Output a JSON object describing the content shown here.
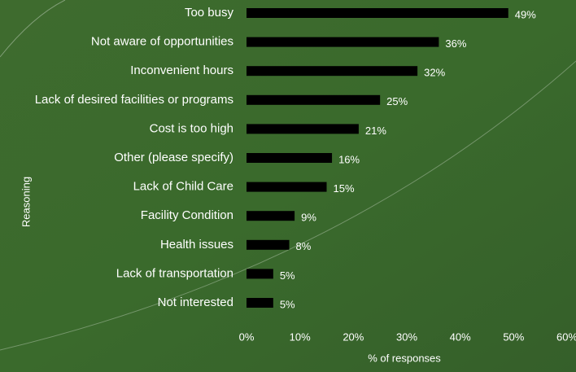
{
  "chart_data": {
    "type": "barh",
    "categories": [
      "Too busy",
      "Not aware of opportunities",
      "Inconvenient hours",
      "Lack of desired facilities or programs",
      "Cost is too high",
      "Other (please specify)",
      "Lack of Child Care",
      "Facility Condition",
      "Health issues",
      "Lack of transportation",
      "Not interested"
    ],
    "values": [
      49,
      36,
      32,
      25,
      21,
      16,
      15,
      9,
      8,
      5,
      5
    ],
    "value_labels": [
      "49%",
      "36%",
      "32%",
      "25%",
      "21%",
      "16%",
      "15%",
      "9%",
      "8%",
      "5%",
      "5%"
    ],
    "color": "#000000",
    "xlim": [
      0,
      60
    ],
    "xticks": [
      {
        "value": 0,
        "label": "0%"
      },
      {
        "value": 10,
        "label": "10%"
      },
      {
        "value": 20,
        "label": "20%"
      },
      {
        "value": 30,
        "label": "30%"
      },
      {
        "value": 40,
        "label": "40%"
      },
      {
        "value": 50,
        "label": "50%"
      },
      {
        "value": 60,
        "label": "60%"
      }
    ],
    "xlabel": "% of responses",
    "ylabel": "Reasoning"
  }
}
